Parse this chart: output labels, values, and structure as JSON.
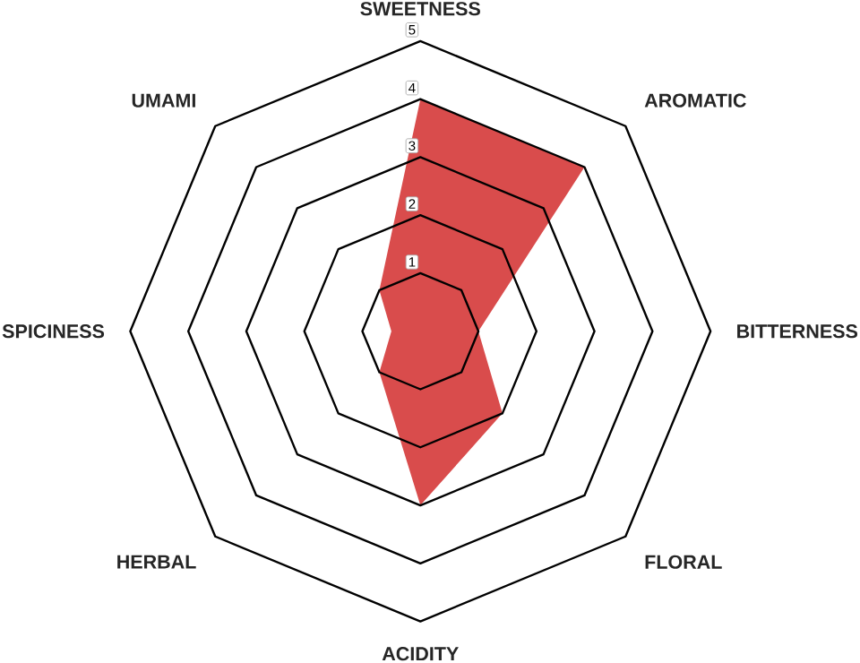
{
  "chart_data": {
    "type": "radar",
    "categories": [
      "SWEETNESS",
      "AROMATIC",
      "BITTERNESS",
      "FLORAL",
      "ACIDITY",
      "HERBAL",
      "SPICINESS",
      "UMAMI"
    ],
    "series": [
      {
        "color": "#d94c4c",
        "values": [
          4,
          4,
          1,
          2,
          3,
          1,
          0.5,
          1
        ]
      }
    ],
    "ylim": [
      0,
      5
    ],
    "yticks": [
      1,
      2,
      3,
      4,
      5
    ],
    "grid": true
  }
}
